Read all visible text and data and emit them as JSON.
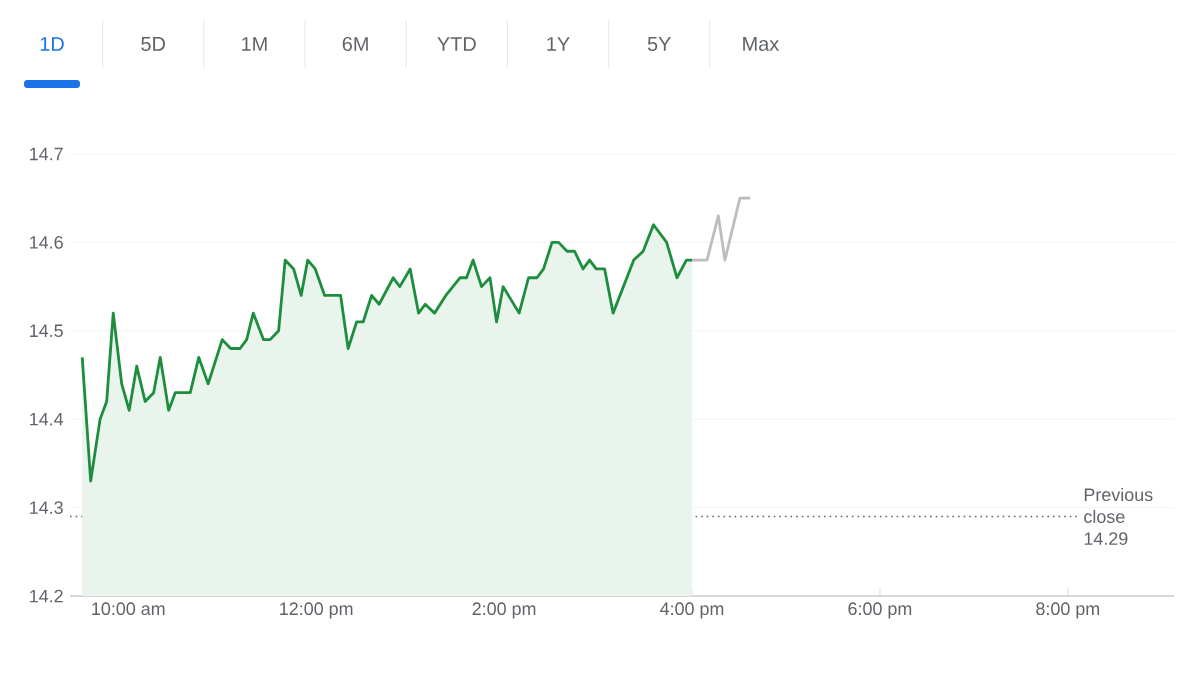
{
  "chart_data": {
    "type": "area",
    "annotations": [
      "1D",
      "5D",
      "1M",
      "6M",
      "YTD",
      "1Y",
      "5Y",
      "Max"
    ],
    "series": [
      {
        "color": "#1e8e3e",
        "x": [
          9.51,
          9.6,
          9.7,
          9.77,
          9.84,
          9.93,
          10.01,
          10.09,
          10.18,
          10.27,
          10.34,
          10.43,
          10.5,
          10.66,
          10.75,
          10.85,
          11.0,
          11.09,
          11.19,
          11.26,
          11.33,
          11.44,
          11.51,
          11.6,
          11.67,
          11.76,
          11.84,
          11.91,
          11.99,
          12.09,
          12.16,
          12.26,
          12.34,
          12.43,
          12.5,
          12.59,
          12.67,
          12.82,
          12.89,
          13.0,
          13.09,
          13.16,
          13.26,
          13.38,
          13.53,
          13.6,
          13.67,
          13.76,
          13.85,
          13.92,
          13.99,
          14.16,
          14.26,
          14.35,
          14.42,
          14.51,
          14.58,
          14.67,
          14.75,
          14.84,
          14.91,
          14.98,
          15.07,
          15.16,
          15.27,
          15.38,
          15.48,
          15.59,
          15.73,
          15.84,
          15.94,
          16.0
        ],
        "values": [
          14.47,
          14.33,
          14.4,
          14.42,
          14.52,
          14.44,
          14.41,
          14.46,
          14.42,
          14.43,
          14.47,
          14.41,
          14.43,
          14.43,
          14.47,
          14.44,
          14.49,
          14.48,
          14.48,
          14.49,
          14.52,
          14.49,
          14.49,
          14.5,
          14.58,
          14.57,
          14.54,
          14.58,
          14.57,
          14.54,
          14.54,
          14.54,
          14.48,
          14.51,
          14.51,
          14.54,
          14.53,
          14.56,
          14.55,
          14.57,
          14.52,
          14.53,
          14.52,
          14.54,
          14.56,
          14.56,
          14.58,
          14.55,
          14.56,
          14.51,
          14.55,
          14.52,
          14.56,
          14.56,
          14.57,
          14.6,
          14.6,
          14.59,
          14.59,
          14.57,
          14.58,
          14.57,
          14.57,
          14.52,
          14.55,
          14.58,
          14.59,
          14.62,
          14.6,
          14.56,
          14.58,
          14.58
        ]
      },
      {
        "type": "line",
        "color": "#bdbdbd",
        "x": [
          16.0,
          16.16,
          16.28,
          16.35,
          16.51,
          16.62
        ],
        "values": [
          14.58,
          14.58,
          14.63,
          14.58,
          14.65,
          14.65
        ]
      }
    ],
    "xlim": [
      9.38,
      21.13
    ],
    "xticks": [
      {
        "value": 10,
        "label": "10:00 am"
      },
      {
        "value": 12,
        "label": "12:00 pm"
      },
      {
        "value": 14,
        "label": "2:00 pm"
      },
      {
        "value": 16,
        "label": "4:00 pm"
      },
      {
        "value": 18,
        "label": "6:00 pm"
      },
      {
        "value": 20,
        "label": "8:00 pm"
      }
    ],
    "ylim": [
      14.2,
      14.7
    ],
    "yticks": [
      14.2,
      14.3,
      14.4,
      14.5,
      14.6,
      14.7
    ],
    "ref_lines": [
      {
        "axis": "y",
        "value": 14.29,
        "label": "Previous close 14.29",
        "color": "#5f6368",
        "line_style": "dotted"
      }
    ],
    "grid": "y"
  }
}
